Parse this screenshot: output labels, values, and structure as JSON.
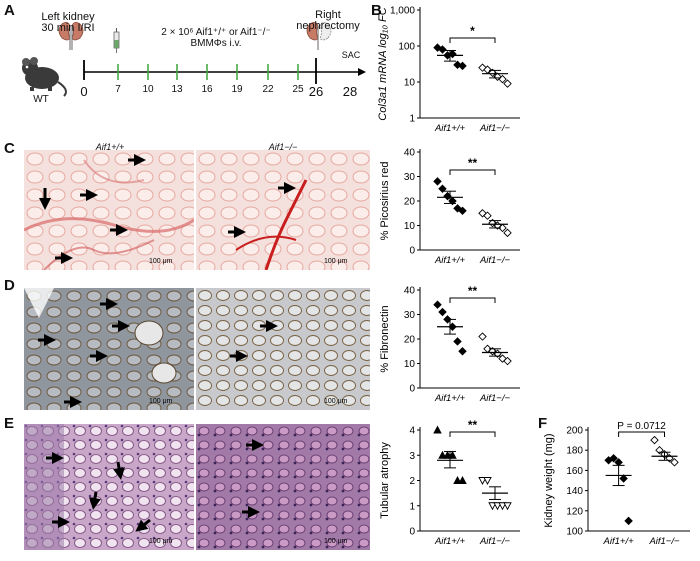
{
  "panels": {
    "A": "A",
    "B": "B",
    "C": "C",
    "D": "D",
    "E": "E",
    "F": "F"
  },
  "timeline": {
    "left_label": "Left kidney\n30 min I/RI",
    "treatment_label": "2 × 10⁶  Aif1⁺/⁺ or Aif1⁻/⁻\nBMMΦs i.v.",
    "right_label": "Right\nnephrectomy",
    "sac_label": "SAC",
    "mouse_label": "WT",
    "days": [
      "0",
      "7",
      "10",
      "13",
      "16",
      "19",
      "22",
      "25",
      "26",
      "28"
    ]
  },
  "groups": {
    "wt": "Aif1+/+",
    "ko": "Aif1−/−"
  },
  "image_titles": {
    "wt": "Aif1+/+",
    "ko": "Aif1−/−"
  },
  "scale_bar": "100 μm",
  "significance": {
    "B": "*",
    "C": "**",
    "D": "**",
    "E": "**",
    "F": "P = 0.0712"
  },
  "chart_data": [
    {
      "id": "B",
      "type": "scatter",
      "scale": "log10",
      "ylabel": "Col3a1 mRNA log₁₀ FC",
      "yticks": [
        "1",
        "10",
        "100",
        "1,000"
      ],
      "ylim": [
        1,
        1000
      ],
      "categories": [
        "Aif1+/+",
        "Aif1−/−"
      ],
      "series": [
        {
          "values": [
            90,
            80,
            55,
            60,
            30,
            28
          ],
          "mean": 55,
          "sem_low": 38,
          "sem_high": 75
        },
        {
          "values": [
            25,
            22,
            18,
            14,
            12,
            9
          ],
          "mean": 17,
          "sem_low": 13,
          "sem_high": 21
        }
      ]
    },
    {
      "id": "C",
      "type": "scatter",
      "ylabel": "% Picosirius red",
      "yticks": [
        "0",
        "10",
        "20",
        "30",
        "40"
      ],
      "ylim": [
        0,
        40
      ],
      "categories": [
        "Aif1+/+",
        "Aif1−/−"
      ],
      "series": [
        {
          "values": [
            28,
            25,
            22,
            20,
            17,
            16
          ],
          "mean": 21.5,
          "sem_low": 19,
          "sem_high": 24
        },
        {
          "values": [
            15,
            14,
            11,
            10,
            9,
            7
          ],
          "mean": 10.5,
          "sem_low": 9,
          "sem_high": 12
        }
      ]
    },
    {
      "id": "D",
      "type": "scatter",
      "ylabel": "% Fibronectin",
      "yticks": [
        "0",
        "10",
        "20",
        "30",
        "40"
      ],
      "ylim": [
        0,
        40
      ],
      "categories": [
        "Aif1+/+",
        "Aif1−/−"
      ],
      "series": [
        {
          "values": [
            34,
            31,
            28,
            25,
            19,
            15
          ],
          "mean": 25,
          "sem_low": 22,
          "sem_high": 28
        },
        {
          "values": [
            21,
            16,
            15,
            14,
            12,
            11
          ],
          "mean": 14.5,
          "sem_low": 13,
          "sem_high": 16
        }
      ]
    },
    {
      "id": "E",
      "type": "scatter",
      "ylabel": "Tubular atrophy",
      "yticks": [
        "0",
        "1",
        "2",
        "3",
        "4"
      ],
      "ylim": [
        0,
        4
      ],
      "categories": [
        "Aif1+/+",
        "Aif1−/−"
      ],
      "series": [
        {
          "values": [
            4,
            3,
            3,
            3,
            2,
            2
          ],
          "mean": 2.8,
          "sem_low": 2.5,
          "sem_high": 3.15
        },
        {
          "values": [
            2,
            2,
            1,
            1,
            1,
            1
          ],
          "mean": 1.5,
          "sem_low": 1.25,
          "sem_high": 1.75
        }
      ]
    },
    {
      "id": "F",
      "type": "scatter",
      "ylabel": "Kidney weight (mg)",
      "yticks": [
        "100",
        "120",
        "140",
        "160",
        "180",
        "200"
      ],
      "ylim": [
        100,
        200
      ],
      "categories": [
        "Aif1+/+",
        "Aif1−/−"
      ],
      "series": [
        {
          "values": [
            170,
            172,
            168,
            152,
            110
          ],
          "mean": 155,
          "sem_low": 145,
          "sem_high": 165
        },
        {
          "values": [
            190,
            180,
            176,
            172,
            168
          ],
          "mean": 174,
          "sem_low": 170,
          "sem_high": 178
        }
      ]
    }
  ]
}
